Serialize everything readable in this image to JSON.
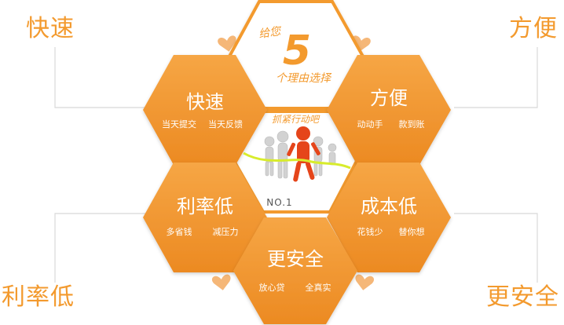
{
  "colors": {
    "accent": "#f39a2e",
    "accent_dark": "#e17d14",
    "line": "#d8d8d8",
    "white": "#ffffff",
    "figure_red": "#e5451a",
    "figure_grey": "#d2d2d2"
  },
  "corners": {
    "top_left": "快速",
    "top_right": "方便",
    "bottom_left": "利率低",
    "bottom_right": "更安全"
  },
  "center_top": {
    "line1": "给您",
    "number": "5",
    "line2": "个理由选择"
  },
  "center": {
    "slogan": "抓紧行动吧",
    "badge": "NO.1"
  },
  "hexes": {
    "fast": {
      "title": "快速",
      "sub1": "当天提交",
      "sub2": "当天反馈"
    },
    "convenient": {
      "title": "方便",
      "sub1": "动动手",
      "sub2": "款到账"
    },
    "low_rate": {
      "title": "利率低",
      "sub1": "多省钱",
      "sub2": "减压力"
    },
    "low_cost": {
      "title": "成本低",
      "sub1": "花钱少",
      "sub2": "替你想"
    },
    "safe": {
      "title": "更安全",
      "sub1": "放心贷",
      "sub2": "全真实"
    }
  }
}
